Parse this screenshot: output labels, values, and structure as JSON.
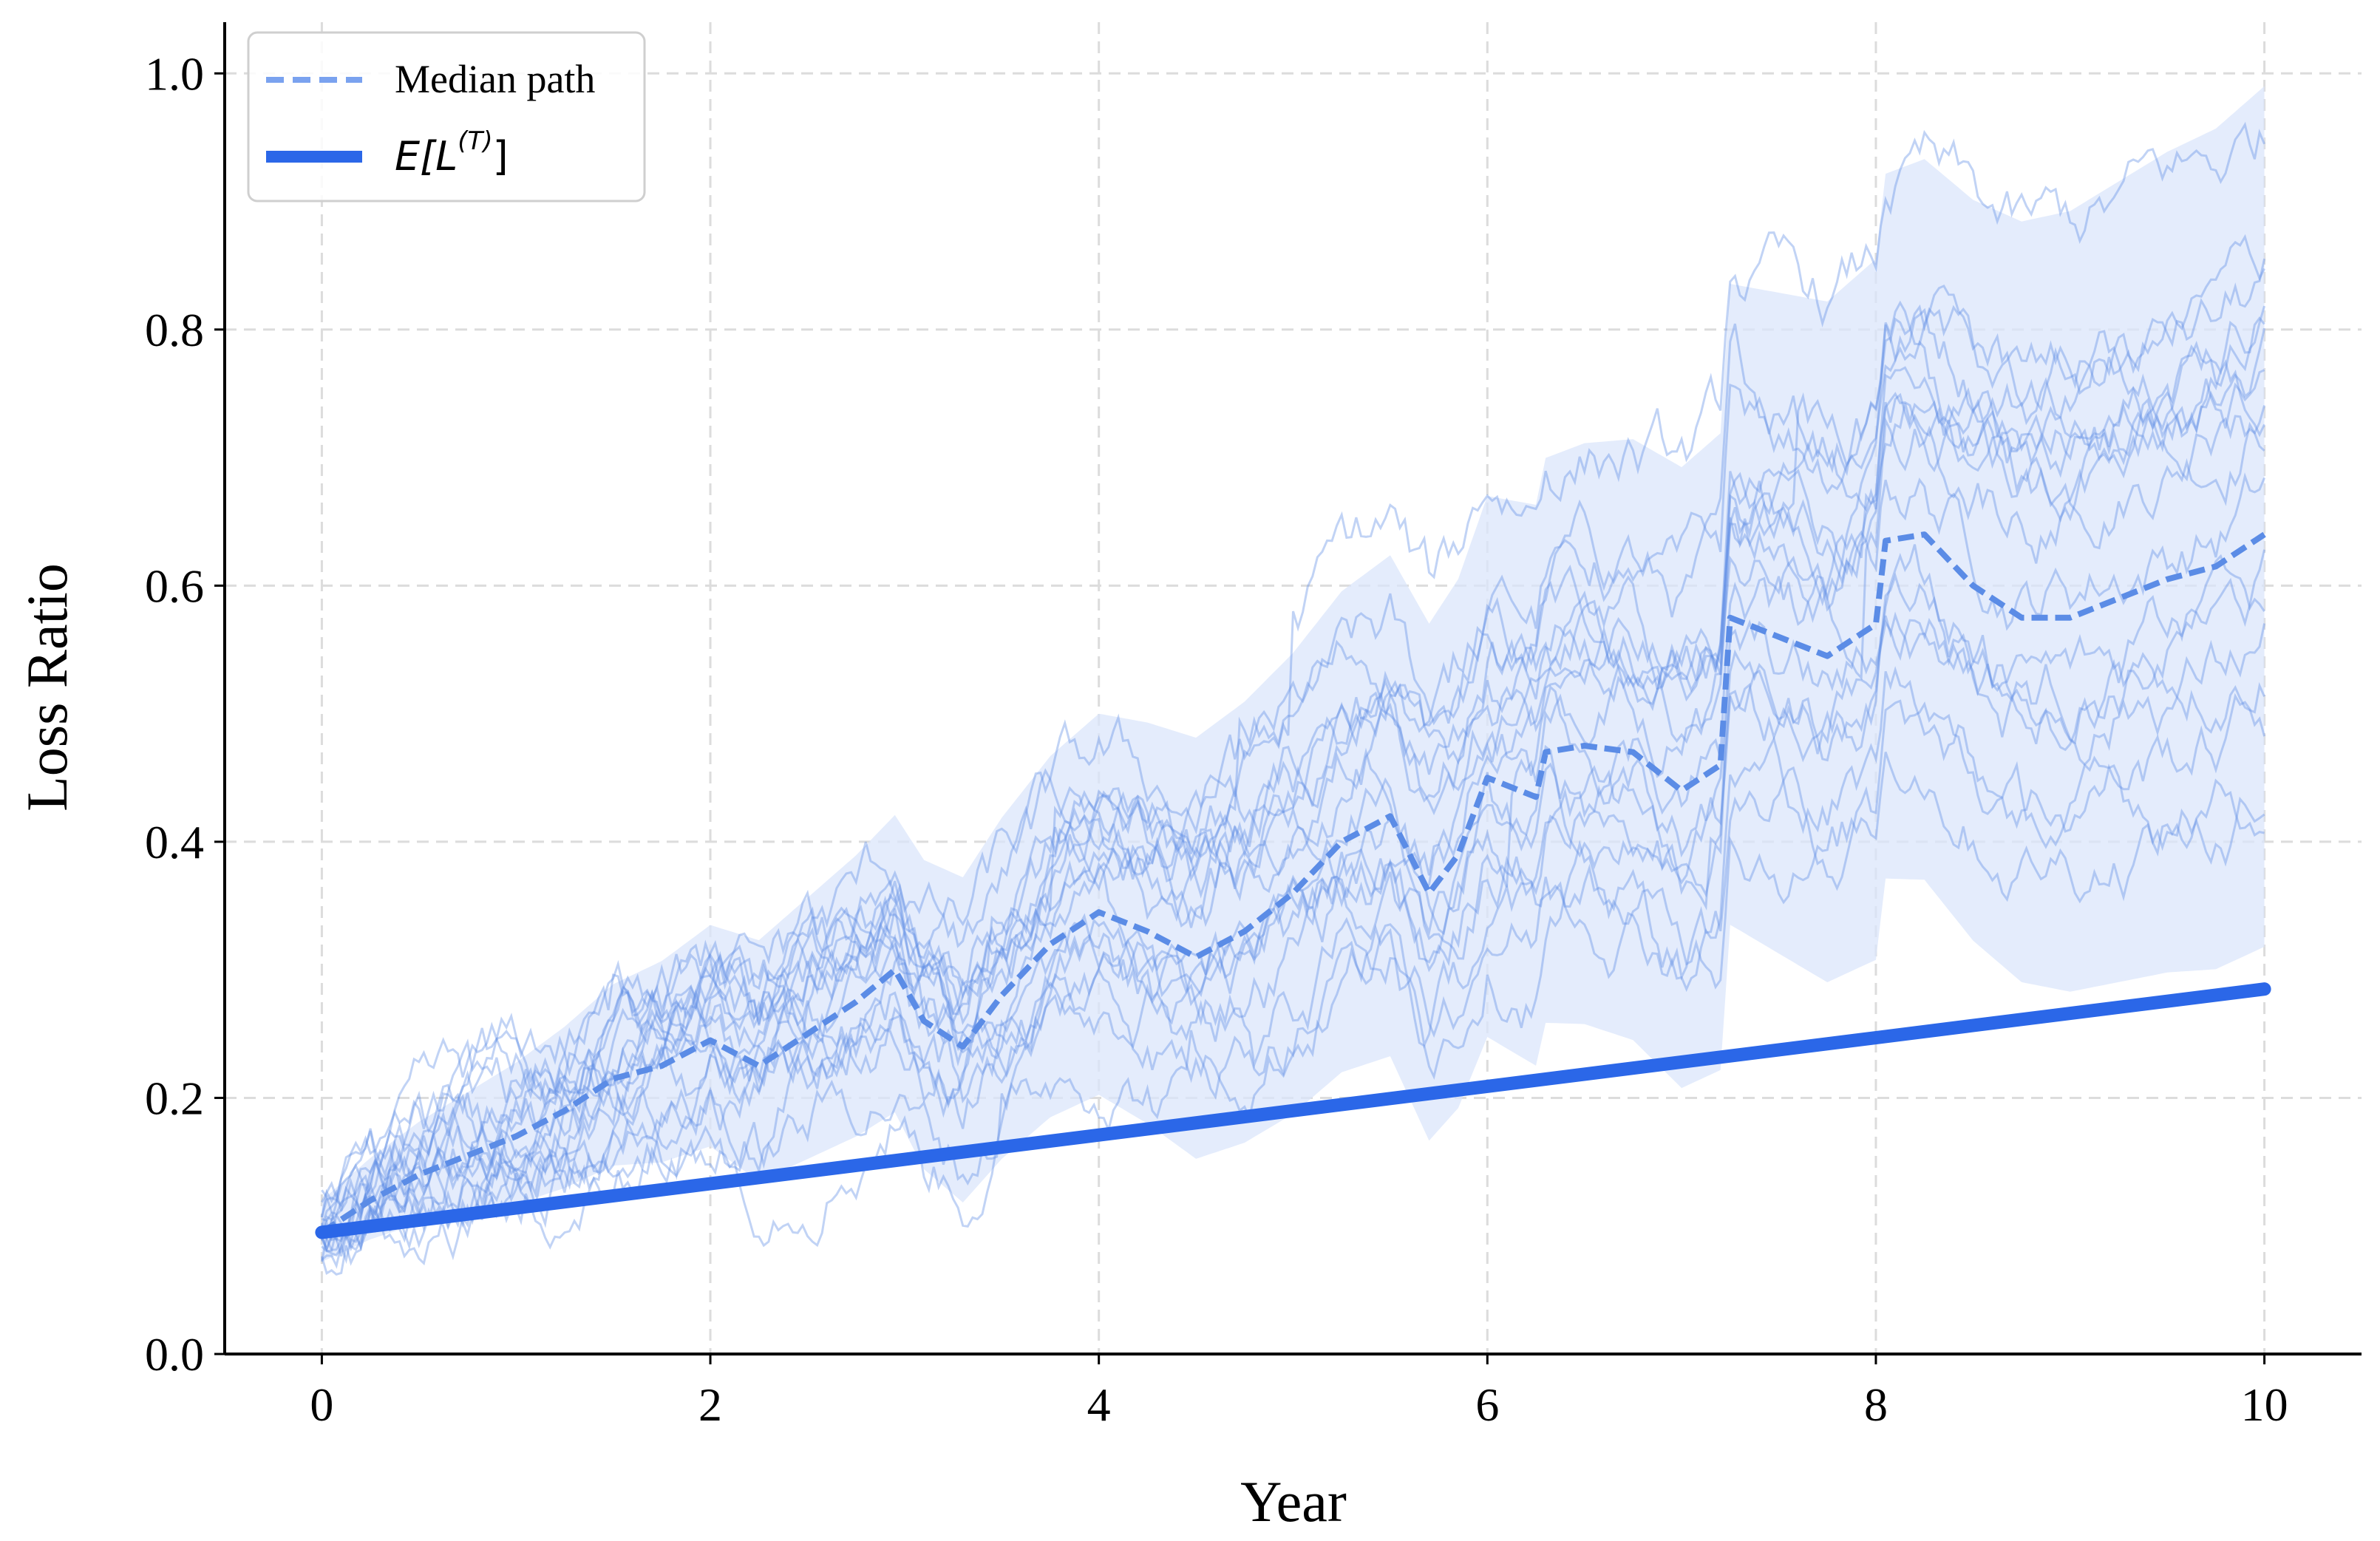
{
  "chart_data": {
    "type": "line",
    "xlabel": "Year",
    "ylabel": "Loss Ratio",
    "xlim": [
      -0.5,
      10.5
    ],
    "ylim": [
      0.0,
      1.04
    ],
    "xticks": [
      0,
      2,
      4,
      6,
      8,
      10
    ],
    "yticks": [
      0.0,
      0.2,
      0.4,
      0.6,
      0.8,
      1.0
    ],
    "xtick_labels": [
      "0",
      "2",
      "4",
      "6",
      "8",
      "10"
    ],
    "ytick_labels": [
      "0.0",
      "0.2",
      "0.4",
      "0.6",
      "0.8",
      "1.0"
    ],
    "grid": true,
    "grid_style": "dashed",
    "legend_position": "top-left",
    "legend": [
      {
        "label": "Median path",
        "style": "dashed",
        "color": "#7aa2ef"
      },
      {
        "label_base": "E[L",
        "label_sup": "(T)",
        "label_end": "]",
        "style": "solid",
        "color": "#2b67e8"
      }
    ],
    "colors": {
      "paths": "#5b8ce6",
      "band": "#dbe6fb",
      "median": "#5b8ce6",
      "expected": "#2b67e8"
    },
    "series": [
      {
        "name": "Median path",
        "style": "dashed",
        "x": [
          0,
          0.25,
          0.5,
          0.75,
          1.0,
          1.25,
          1.5,
          1.75,
          2.0,
          2.25,
          2.5,
          2.75,
          2.95,
          3.1,
          3.3,
          3.5,
          3.75,
          4.0,
          4.25,
          4.5,
          4.75,
          5.0,
          5.25,
          5.5,
          5.7,
          5.85,
          6.0,
          6.25,
          6.3,
          6.5,
          6.75,
          7.0,
          7.2,
          7.25,
          7.5,
          7.75,
          8.0,
          8.05,
          8.25,
          8.5,
          8.75,
          9.0,
          9.25,
          9.5,
          9.75,
          10.0
        ],
        "y": [
          0.095,
          0.12,
          0.14,
          0.155,
          0.17,
          0.19,
          0.215,
          0.225,
          0.245,
          0.225,
          0.25,
          0.275,
          0.3,
          0.26,
          0.24,
          0.28,
          0.32,
          0.345,
          0.33,
          0.31,
          0.33,
          0.36,
          0.4,
          0.42,
          0.36,
          0.39,
          0.45,
          0.435,
          0.47,
          0.475,
          0.47,
          0.44,
          0.46,
          0.575,
          0.56,
          0.545,
          0.57,
          0.635,
          0.64,
          0.6,
          0.575,
          0.575,
          0.59,
          0.605,
          0.615,
          0.64
        ]
      },
      {
        "name": "E[L(T)]",
        "style": "solid",
        "x": [
          0,
          10
        ],
        "y": [
          0.095,
          0.285
        ]
      }
    ]
  }
}
